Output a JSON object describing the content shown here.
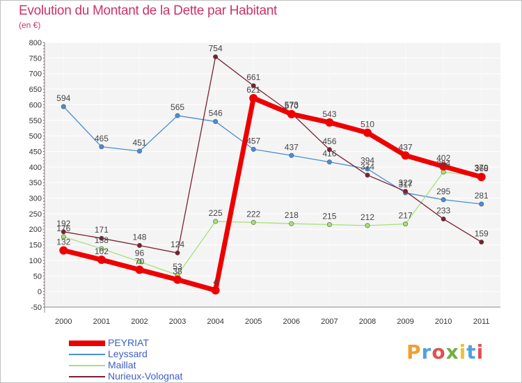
{
  "header": {
    "title": "Evolution du Montant de la Dette par Habitant",
    "subtitle": "(en €)"
  },
  "logo": {
    "text": "Proxiti",
    "colors": [
      "#f0a030",
      "#50a0e0",
      "#e05050",
      "#70b040",
      "#f0c030",
      "#50a0e0",
      "#e05050"
    ]
  },
  "chart_data": {
    "type": "line",
    "title": "Evolution du Montant de la Dette par Habitant",
    "subtitle": "(en €)",
    "xlabel": "",
    "ylabel": "",
    "ylim": [
      -50,
      800
    ],
    "yticks": [
      -50,
      0,
      50,
      100,
      150,
      200,
      250,
      300,
      350,
      400,
      450,
      500,
      550,
      600,
      650,
      700,
      750,
      800
    ],
    "grid": true,
    "legend_position": "bottom-left",
    "x": [
      "2000",
      "2001",
      "2002",
      "2003",
      "2004",
      "2005",
      "2006",
      "2007",
      "2008",
      "2009",
      "2010",
      "2011"
    ],
    "series": [
      {
        "name": "PEYRIAT",
        "color": "#ee0000",
        "values": [
          132,
          102,
          70,
          38,
          4,
          621,
          570,
          543,
          510,
          437,
          402,
          368
        ]
      },
      {
        "name": "Leyssard",
        "color": "#4a8ed1",
        "values": [
          594,
          465,
          451,
          565,
          546,
          457,
          437,
          416,
          394,
          317,
          295,
          281
        ]
      },
      {
        "name": "Maillat",
        "color": "#a8e07a",
        "values": [
          176,
          138,
          96,
          53,
          225,
          222,
          218,
          215,
          212,
          217,
          384,
          370
        ]
      },
      {
        "name": "Nurieux-Volognat",
        "color": "#7a2030",
        "values": [
          192,
          171,
          148,
          124,
          754,
          661,
          573,
          456,
          374,
          322,
          233,
          159
        ]
      }
    ]
  }
}
